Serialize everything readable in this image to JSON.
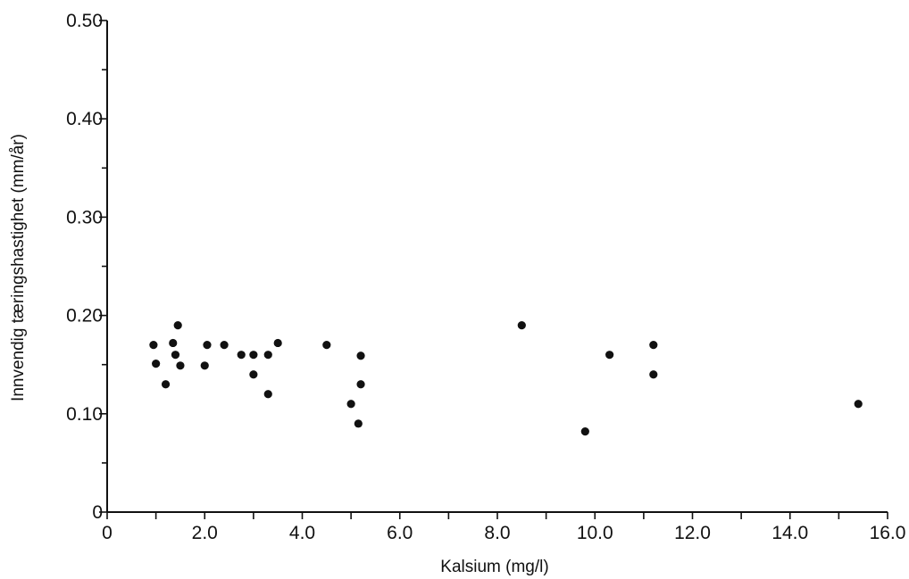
{
  "chart_data": {
    "type": "scatter",
    "title": "",
    "xlabel": "Kalsium (mg/l)",
    "ylabel": "Innvendig tæringshastighet (mm/år)",
    "xlim": [
      0,
      16.0
    ],
    "ylim": [
      0,
      0.5
    ],
    "x_ticks": [
      0,
      2.0,
      4.0,
      6.0,
      8.0,
      10.0,
      12.0,
      14.0,
      16.0
    ],
    "x_tick_labels": [
      "0",
      "2.0",
      "4.0",
      "6.0",
      "8.0",
      "10.0",
      "12.0",
      "14.0",
      "16.0"
    ],
    "y_ticks": [
      0,
      0.1,
      0.2,
      0.3,
      0.4,
      0.5
    ],
    "y_tick_labels": [
      "0",
      "0.10",
      "0.20",
      "0.30",
      "0.40",
      "0.50"
    ],
    "grid": false,
    "marker_color": "#111111",
    "points": [
      {
        "x": 0.95,
        "y": 0.17
      },
      {
        "x": 1.0,
        "y": 0.151
      },
      {
        "x": 1.2,
        "y": 0.13
      },
      {
        "x": 1.35,
        "y": 0.172
      },
      {
        "x": 1.4,
        "y": 0.16
      },
      {
        "x": 1.45,
        "y": 0.19
      },
      {
        "x": 1.5,
        "y": 0.149
      },
      {
        "x": 2.0,
        "y": 0.149
      },
      {
        "x": 2.05,
        "y": 0.17
      },
      {
        "x": 2.4,
        "y": 0.17
      },
      {
        "x": 2.75,
        "y": 0.16
      },
      {
        "x": 3.0,
        "y": 0.16
      },
      {
        "x": 3.0,
        "y": 0.14
      },
      {
        "x": 3.3,
        "y": 0.16
      },
      {
        "x": 3.3,
        "y": 0.12
      },
      {
        "x": 3.5,
        "y": 0.172
      },
      {
        "x": 4.5,
        "y": 0.17
      },
      {
        "x": 5.0,
        "y": 0.11
      },
      {
        "x": 5.2,
        "y": 0.13
      },
      {
        "x": 5.15,
        "y": 0.09
      },
      {
        "x": 5.2,
        "y": 0.159
      },
      {
        "x": 8.5,
        "y": 0.19
      },
      {
        "x": 9.8,
        "y": 0.082
      },
      {
        "x": 10.3,
        "y": 0.16
      },
      {
        "x": 11.2,
        "y": 0.17
      },
      {
        "x": 11.2,
        "y": 0.14
      },
      {
        "x": 15.4,
        "y": 0.11
      }
    ]
  }
}
